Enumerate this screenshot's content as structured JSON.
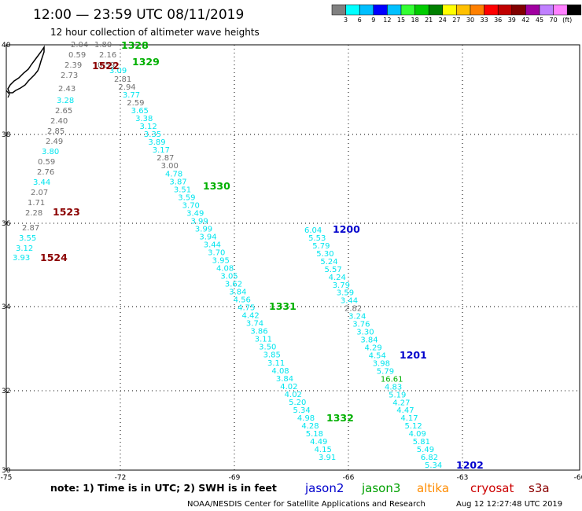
{
  "title": "12:00 — 23:59 UTC 08/11/2019",
  "subtitle": "12 hour collection of altimeter wave heights",
  "legend": {
    "colors": [
      "#808080",
      "#00ffff",
      "#00bfff",
      "#0000ff",
      "#00c0ff",
      "#33ff33",
      "#00cc00",
      "#008000",
      "#ffff00",
      "#ffc000",
      "#ff8000",
      "#ff0000",
      "#c00000",
      "#800000",
      "#a000a0",
      "#c080ff",
      "#ff80ff",
      "#000000"
    ],
    "labels": [
      "3",
      "6",
      "9",
      "12",
      "15",
      "18",
      "21",
      "24",
      "27",
      "30",
      "33",
      "36",
      "39",
      "42",
      "45",
      "70",
      "(ft)"
    ]
  },
  "axes": {
    "x_ticks": [
      "-75",
      "-72",
      "-69",
      "-66",
      "-63",
      "-60"
    ],
    "y_ticks": [
      "40",
      "38",
      "36",
      "34",
      "32",
      "30"
    ]
  },
  "value_colors": {
    "cyan": "#00e5ee",
    "gray": "#707070",
    "green": "#00b000",
    "darkred": "#8b0000",
    "blue": "#0000cc"
  },
  "tracks": {
    "left_gray": [
      {
        "v": "2.04",
        "c": "gray"
      },
      {
        "v": "0.59",
        "c": "gray"
      },
      {
        "v": "2.39",
        "c": "gray"
      },
      {
        "v": "2.73",
        "c": "gray"
      },
      {
        "v": "2.43",
        "c": "gray"
      },
      {
        "v": "3.28",
        "c": "cyan"
      },
      {
        "v": "2.65",
        "c": "gray"
      },
      {
        "v": "2.40",
        "c": "gray"
      },
      {
        "v": "2.85",
        "c": "gray"
      },
      {
        "v": "2.49",
        "c": "gray"
      },
      {
        "v": "3.80",
        "c": "cyan"
      },
      {
        "v": "0.59",
        "c": "gray"
      },
      {
        "v": "2.76",
        "c": "gray"
      },
      {
        "v": "3.44",
        "c": "cyan"
      },
      {
        "v": "2.07",
        "c": "gray"
      },
      {
        "v": "1.71",
        "c": "gray"
      },
      {
        "v": "2.28",
        "c": "gray"
      },
      {
        "v": "2.87",
        "c": "gray"
      },
      {
        "v": "3.55",
        "c": "cyan"
      },
      {
        "v": "3.12",
        "c": "cyan"
      },
      {
        "v": "3.93",
        "c": "cyan"
      }
    ],
    "top_extra": [
      {
        "v": "1.80",
        "c": "gray"
      },
      {
        "v": "2.16",
        "c": "gray"
      },
      {
        "v": "0.59",
        "c": "gray"
      },
      {
        "v": "3.09",
        "c": "cyan"
      }
    ],
    "middle": [
      {
        "v": "2.81",
        "c": "gray"
      },
      {
        "v": "2.94",
        "c": "gray"
      },
      {
        "v": "3.77",
        "c": "cyan"
      },
      {
        "v": "2.59",
        "c": "gray"
      },
      {
        "v": "3.65",
        "c": "cyan"
      },
      {
        "v": "3.38",
        "c": "cyan"
      },
      {
        "v": "3.12",
        "c": "cyan"
      },
      {
        "v": "3.35",
        "c": "cyan"
      },
      {
        "v": "3.89",
        "c": "cyan"
      },
      {
        "v": "3.17",
        "c": "cyan"
      },
      {
        "v": "2.87",
        "c": "gray"
      },
      {
        "v": "3.00",
        "c": "gray"
      },
      {
        "v": "4.78",
        "c": "cyan"
      },
      {
        "v": "3.87",
        "c": "cyan"
      },
      {
        "v": "3.51",
        "c": "cyan"
      },
      {
        "v": "3.59",
        "c": "cyan"
      },
      {
        "v": "3.70",
        "c": "cyan"
      },
      {
        "v": "3.49",
        "c": "cyan"
      },
      {
        "v": "3.99",
        "c": "cyan"
      },
      {
        "v": "3.99",
        "c": "cyan"
      },
      {
        "v": "3.94",
        "c": "cyan"
      },
      {
        "v": "3.44",
        "c": "cyan"
      },
      {
        "v": "3.70",
        "c": "cyan"
      },
      {
        "v": "3.95",
        "c": "cyan"
      },
      {
        "v": "4.08",
        "c": "cyan"
      },
      {
        "v": "3.05",
        "c": "cyan"
      },
      {
        "v": "3.62",
        "c": "cyan"
      },
      {
        "v": "3.84",
        "c": "cyan"
      },
      {
        "v": "4.56",
        "c": "cyan"
      },
      {
        "v": "4.75",
        "c": "cyan"
      },
      {
        "v": "4.42",
        "c": "cyan"
      },
      {
        "v": "3.74",
        "c": "cyan"
      },
      {
        "v": "3.86",
        "c": "cyan"
      },
      {
        "v": "3.11",
        "c": "cyan"
      },
      {
        "v": "3.50",
        "c": "cyan"
      },
      {
        "v": "3.85",
        "c": "cyan"
      },
      {
        "v": "3.11",
        "c": "cyan"
      },
      {
        "v": "4.08",
        "c": "cyan"
      },
      {
        "v": "3.84",
        "c": "cyan"
      },
      {
        "v": "4.02",
        "c": "cyan"
      },
      {
        "v": "4.02",
        "c": "cyan"
      },
      {
        "v": "5.20",
        "c": "cyan"
      },
      {
        "v": "5.34",
        "c": "cyan"
      },
      {
        "v": "4.98",
        "c": "cyan"
      },
      {
        "v": "4.28",
        "c": "cyan"
      },
      {
        "v": "5.18",
        "c": "cyan"
      },
      {
        "v": "4.49",
        "c": "cyan"
      },
      {
        "v": "4.15",
        "c": "cyan"
      },
      {
        "v": "3.91",
        "c": "cyan"
      }
    ],
    "right": [
      {
        "v": "6.04",
        "c": "cyan"
      },
      {
        "v": "5.53",
        "c": "cyan"
      },
      {
        "v": "5.79",
        "c": "cyan"
      },
      {
        "v": "5.30",
        "c": "cyan"
      },
      {
        "v": "5.24",
        "c": "cyan"
      },
      {
        "v": "5.57",
        "c": "cyan"
      },
      {
        "v": "4.24",
        "c": "cyan"
      },
      {
        "v": "3.79",
        "c": "cyan"
      },
      {
        "v": "3.59",
        "c": "cyan"
      },
      {
        "v": "3.44",
        "c": "cyan"
      },
      {
        "v": "2.82",
        "c": "gray"
      },
      {
        "v": "3.24",
        "c": "cyan"
      },
      {
        "v": "3.76",
        "c": "cyan"
      },
      {
        "v": "3.30",
        "c": "cyan"
      },
      {
        "v": "3.84",
        "c": "cyan"
      },
      {
        "v": "4.29",
        "c": "cyan"
      },
      {
        "v": "4.54",
        "c": "cyan"
      },
      {
        "v": "3.98",
        "c": "cyan"
      },
      {
        "v": "5.79",
        "c": "cyan"
      },
      {
        "v": "16.61",
        "c": "green"
      },
      {
        "v": "4.83",
        "c": "cyan"
      },
      {
        "v": "5.19",
        "c": "cyan"
      },
      {
        "v": "4.27",
        "c": "cyan"
      },
      {
        "v": "4.47",
        "c": "cyan"
      },
      {
        "v": "4.17",
        "c": "cyan"
      },
      {
        "v": "5.12",
        "c": "cyan"
      },
      {
        "v": "4.09",
        "c": "cyan"
      },
      {
        "v": "5.81",
        "c": "cyan"
      },
      {
        "v": "5.49",
        "c": "cyan"
      },
      {
        "v": "6.82",
        "c": "cyan"
      },
      {
        "v": "5.34",
        "c": "cyan"
      }
    ]
  },
  "times": [
    {
      "t": "1328",
      "c": "green"
    },
    {
      "t": "1329",
      "c": "green"
    },
    {
      "t": "1522",
      "c": "darkred"
    },
    {
      "t": "1523",
      "c": "darkred"
    },
    {
      "t": "1524",
      "c": "darkred"
    },
    {
      "t": "1330",
      "c": "green"
    },
    {
      "t": "1331",
      "c": "green"
    },
    {
      "t": "1332",
      "c": "green"
    },
    {
      "t": "1200",
      "c": "blue"
    },
    {
      "t": "1201",
      "c": "blue"
    },
    {
      "t": "1202",
      "c": "blue"
    }
  ],
  "footer": {
    "note": "note: 1) Time is in UTC; 2) SWH is in feet",
    "satellites": [
      {
        "name": "jason2",
        "color": "#0000cc"
      },
      {
        "name": "jason3",
        "color": "#00a000"
      },
      {
        "name": "altika",
        "color": "#ff8c00"
      },
      {
        "name": "cryosat",
        "color": "#cc0000"
      },
      {
        "name": "s3a",
        "color": "#8b0000"
      }
    ],
    "credit": "NOAA/NESDIS Center for Satellite Applications and Research",
    "timestamp": "Aug 12 12:27:48 UTC 2019"
  }
}
